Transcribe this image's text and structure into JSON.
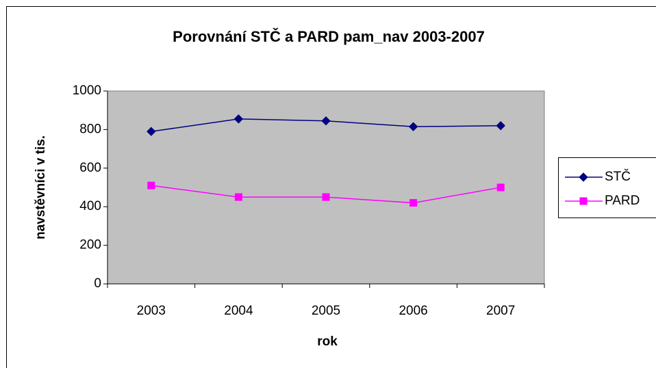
{
  "chart_data": {
    "type": "line",
    "title": "Porovnání STČ a PARD pam_nav 2003-2007",
    "x_label": "rok",
    "y_label": "navstěvníci v tis.",
    "categories": [
      "2003",
      "2004",
      "2005",
      "2006",
      "2007"
    ],
    "series": [
      {
        "name": "STČ",
        "color": "#000080",
        "marker": "diamond",
        "values": [
          790,
          855,
          845,
          815,
          820
        ]
      },
      {
        "name": "PARD",
        "color": "#ff00ff",
        "marker": "square",
        "values": [
          510,
          450,
          450,
          420,
          500
        ]
      }
    ],
    "ylim": [
      0,
      1000
    ],
    "yticks": [
      0,
      200,
      400,
      600,
      800,
      1000
    ],
    "legend": "right"
  }
}
